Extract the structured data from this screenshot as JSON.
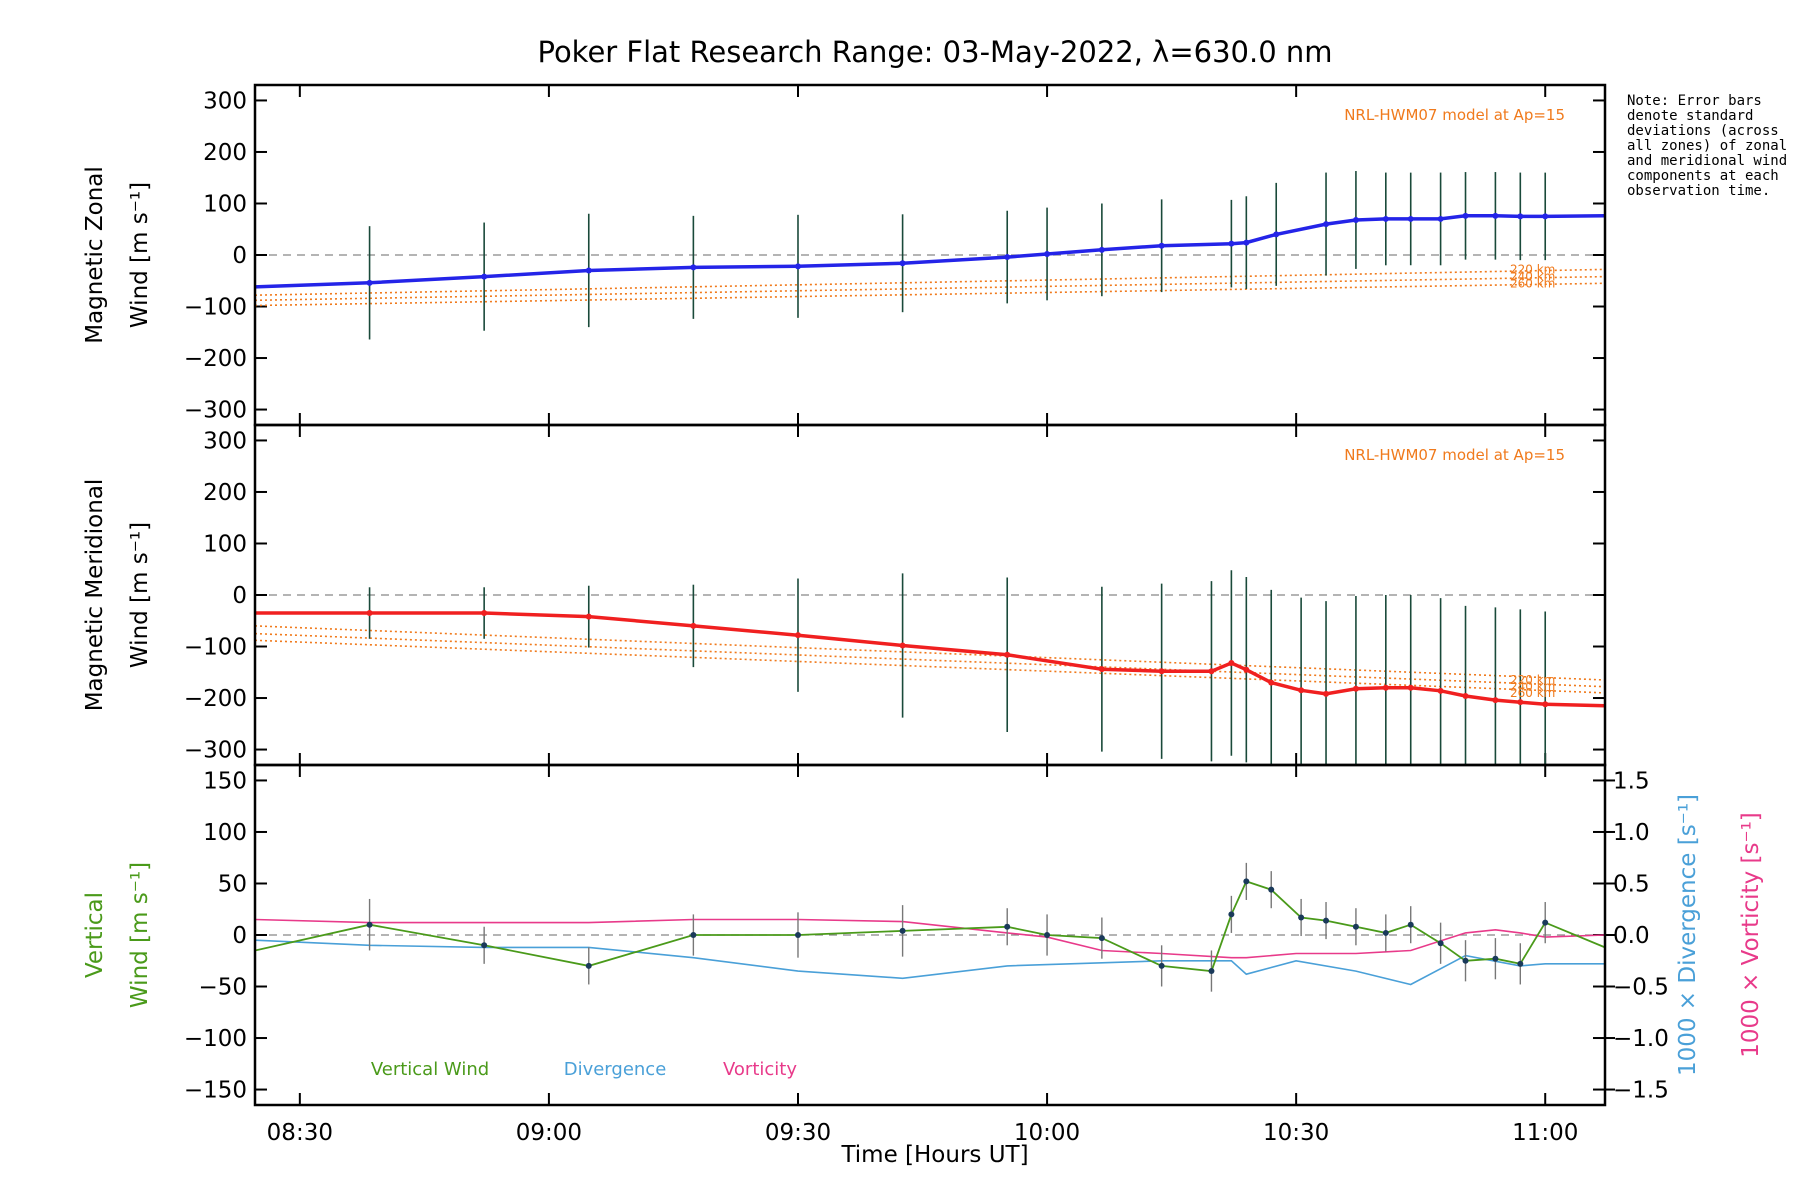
{
  "chart_data": {
    "type": "line",
    "title": "Poker Flat Research Range: 03-May-2022, λ=630.0 nm",
    "note": "Note: Error bars denote standard deviations (across all zones) of zonal and meridional wind components at each observation time.",
    "xlabel": "Time [Hours UT]",
    "x_ticks": [
      "08:30",
      "09:00",
      "09:30",
      "10:00",
      "10:30",
      "11:00"
    ],
    "x_tick_hours": [
      8.5,
      9.0,
      9.5,
      10.0,
      10.5,
      11.0
    ],
    "xlim": [
      8.41,
      11.12
    ],
    "panels": [
      {
        "id": "zonal",
        "ylabel_line1": "Magnetic Zonal",
        "ylabel_line2": "Wind [m s⁻¹]",
        "ylim": [
          -330,
          330
        ],
        "yticks": [
          300,
          200,
          100,
          0,
          -100,
          -200,
          -300
        ],
        "y_tick_labels": [
          "300",
          "200",
          "100",
          "0",
          "−100",
          "−200",
          "−300"
        ],
        "model_label": "NRL-HWM07 model at Ap=15",
        "model_alt_labels": [
          "220 km",
          "240 km",
          "260 km"
        ],
        "series": [
          {
            "name": "Magnetic Zonal Wind",
            "color": "#2424e8",
            "x": [
              8.41,
              8.64,
              8.87,
              9.08,
              9.29,
              9.5,
              9.71,
              9.92,
              10.0,
              10.11,
              10.23,
              10.37,
              10.4,
              10.46,
              10.56,
              10.62,
              10.68,
              10.73,
              10.79,
              10.84,
              10.9,
              10.95,
              11.0,
              11.12
            ],
            "y": [
              -62,
              -54,
              -42,
              -30,
              -24,
              -22,
              -16,
              -4,
              2,
              10,
              18,
              22,
              24,
              40,
              60,
              68,
              70,
              70,
              70,
              76,
              76,
              75,
              75,
              76
            ],
            "err": [
              0,
              110,
              105,
              110,
              100,
              100,
              95,
              90,
              90,
              90,
              90,
              85,
              90,
              100,
              100,
              95,
              90,
              90,
              90,
              85,
              85,
              85,
              85,
              0
            ]
          },
          {
            "name": "NRL-HWM07 220 km",
            "color": "#f07a1c",
            "x": [
              8.41,
              11.12
            ],
            "y": [
              -78,
              -28
            ]
          },
          {
            "name": "NRL-HWM07 240 km",
            "color": "#f07a1c",
            "x": [
              8.41,
              11.12
            ],
            "y": [
              -88,
              -42
            ]
          },
          {
            "name": "NRL-HWM07 260 km",
            "color": "#f07a1c",
            "x": [
              8.41,
              11.12
            ],
            "y": [
              -98,
              -55
            ]
          }
        ]
      },
      {
        "id": "meridional",
        "ylabel_line1": "Magnetic Meridional",
        "ylabel_line2": "Wind [m s⁻¹]",
        "ylim": [
          -330,
          330
        ],
        "yticks": [
          300,
          200,
          100,
          0,
          -100,
          -200,
          -300
        ],
        "y_tick_labels": [
          "300",
          "200",
          "100",
          "0",
          "−100",
          "−200",
          "−300"
        ],
        "model_label": "NRL-HWM07 model at Ap=15",
        "model_alt_labels": [
          "220 km",
          "240 km",
          "260 km"
        ],
        "series": [
          {
            "name": "Magnetic Meridional Wind",
            "color": "#f02020",
            "x": [
              8.41,
              8.64,
              8.87,
              9.08,
              9.29,
              9.5,
              9.71,
              9.92,
              10.11,
              10.23,
              10.33,
              10.37,
              10.4,
              10.45,
              10.51,
              10.56,
              10.62,
              10.68,
              10.73,
              10.79,
              10.84,
              10.9,
              10.95,
              11.0,
              11.12
            ],
            "y": [
              -35,
              -35,
              -35,
              -42,
              -60,
              -78,
              -98,
              -116,
              -144,
              -148,
              -148,
              -132,
              -145,
              -170,
              -185,
              -192,
              -182,
              -180,
              -180,
              -186,
              -196,
              -204,
              -208,
              -212,
              -215
            ],
            "err": [
              0,
              50,
              50,
              60,
              80,
              110,
              140,
              150,
              160,
              170,
              175,
              180,
              180,
              180,
              180,
              180,
              180,
              180,
              180,
              180,
              175,
              180,
              180,
              180,
              0
            ]
          },
          {
            "name": "NRL-HWM07 220 km",
            "color": "#f07a1c",
            "x": [
              8.41,
              11.12
            ],
            "y": [
              -60,
              -165
            ]
          },
          {
            "name": "NRL-HWM07 240 km",
            "color": "#f07a1c",
            "x": [
              8.41,
              11.12
            ],
            "y": [
              -75,
              -178
            ]
          },
          {
            "name": "NRL-HWM07 260 km",
            "color": "#f07a1c",
            "x": [
              8.41,
              11.12
            ],
            "y": [
              -88,
              -190
            ]
          }
        ]
      },
      {
        "id": "vertical",
        "ylabel_line1": "Vertical",
        "ylabel_line2": "Wind [m s⁻¹]",
        "ylim": [
          -165,
          165
        ],
        "yticks": [
          150,
          100,
          50,
          0,
          -50,
          -100,
          -150
        ],
        "y_tick_labels": [
          "150",
          "100",
          "50",
          "0",
          "−50",
          "−100",
          "−150"
        ],
        "right_ylim": [
          -1.65,
          1.65
        ],
        "right_yticks": [
          1.5,
          1.0,
          0.5,
          0.0,
          -0.5,
          -1.0,
          -1.5
        ],
        "right_tick_labels": [
          "1.5",
          "1.0",
          "0.5",
          "0.0",
          "−0.5",
          "−1.0",
          "−1.5"
        ],
        "right_label_div": "1000 × Divergence [s⁻¹]",
        "right_label_vort": "1000 × Vorticity [s⁻¹]",
        "legend": [
          "Vertical Wind",
          "Divergence",
          "Vorticity"
        ],
        "series": [
          {
            "name": "Vertical Wind",
            "color": "#4a9a1a",
            "axis": "left",
            "x": [
              8.41,
              8.64,
              8.87,
              9.08,
              9.29,
              9.5,
              9.71,
              9.92,
              10.0,
              10.11,
              10.23,
              10.33,
              10.37,
              10.4,
              10.45,
              10.51,
              10.56,
              10.62,
              10.68,
              10.73,
              10.79,
              10.84,
              10.9,
              10.95,
              11.0,
              11.12
            ],
            "y": [
              -15,
              10,
              -10,
              -30,
              0,
              0,
              4,
              8,
              0,
              -3,
              -30,
              -35,
              20,
              52,
              44,
              17,
              14,
              8,
              2,
              10,
              -8,
              -25,
              -23,
              -28,
              12,
              -12
            ],
            "err": [
              0,
              25,
              18,
              18,
              20,
              22,
              25,
              18,
              20,
              20,
              20,
              20,
              18,
              18,
              18,
              18,
              18,
              18,
              18,
              18,
              20,
              20,
              20,
              20,
              20,
              0
            ]
          },
          {
            "name": "Divergence",
            "color": "#4aa0d8",
            "axis": "right",
            "x": [
              8.41,
              8.64,
              8.87,
              9.08,
              9.29,
              9.5,
              9.71,
              9.92,
              10.11,
              10.23,
              10.37,
              10.4,
              10.5,
              10.62,
              10.73,
              10.84,
              10.95,
              11.0,
              11.12
            ],
            "y": [
              -0.05,
              -0.1,
              -0.12,
              -0.12,
              -0.22,
              -0.35,
              -0.42,
              -0.3,
              -0.27,
              -0.25,
              -0.25,
              -0.38,
              -0.25,
              -0.35,
              -0.48,
              -0.2,
              -0.3,
              -0.28,
              -0.28
            ]
          },
          {
            "name": "Vorticity",
            "color": "#e83a8a",
            "axis": "right",
            "x": [
              8.41,
              8.64,
              8.87,
              9.08,
              9.29,
              9.5,
              9.71,
              9.92,
              10.0,
              10.11,
              10.23,
              10.37,
              10.4,
              10.5,
              10.62,
              10.73,
              10.84,
              10.9,
              10.95,
              11.0,
              11.12
            ],
            "y": [
              0.15,
              0.12,
              0.12,
              0.12,
              0.15,
              0.15,
              0.13,
              0.02,
              -0.02,
              -0.15,
              -0.18,
              -0.22,
              -0.22,
              -0.18,
              -0.18,
              -0.15,
              0.02,
              0.05,
              0.02,
              -0.02,
              0.0
            ]
          }
        ]
      }
    ]
  }
}
